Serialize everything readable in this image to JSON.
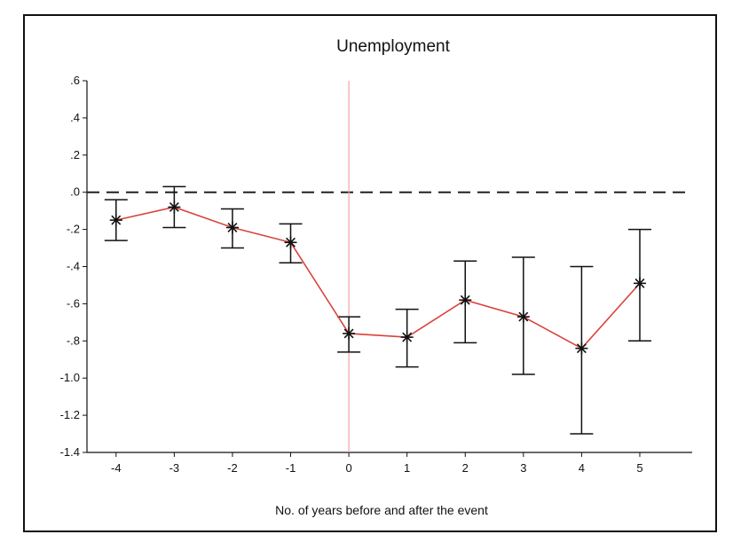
{
  "chart_data": {
    "type": "line",
    "title": "Unemployment",
    "xlabel": "No. of years before and after the event",
    "ylabel": "",
    "x": [
      -4,
      -3,
      -2,
      -1,
      0,
      1,
      2,
      3,
      4,
      5
    ],
    "xlim": [
      -4.5,
      5.9
    ],
    "ylim": [
      -1.4,
      0.6
    ],
    "x_ticks": [
      "-4",
      "-3",
      "-2",
      "-1",
      "0",
      "1",
      "2",
      "3",
      "4",
      "5"
    ],
    "y_ticks": [
      ".6",
      ".4",
      ".2",
      ".0",
      "-.2",
      "-.4",
      "-.6",
      "-.8",
      "-1.0",
      "-1.2",
      "-1.4"
    ],
    "y_tick_values": [
      0.6,
      0.4,
      0.2,
      0.0,
      -0.2,
      -0.4,
      -0.6,
      -0.8,
      -1.0,
      -1.2,
      -1.4
    ],
    "series": [
      {
        "values": [
          -0.15,
          -0.08,
          -0.19,
          -0.27,
          -0.76,
          -0.78,
          -0.58,
          -0.67,
          -0.84,
          -0.49
        ],
        "lower": [
          -0.26,
          -0.19,
          -0.3,
          -0.38,
          -0.86,
          -0.94,
          -0.81,
          -0.98,
          -1.3,
          -0.8
        ],
        "upper": [
          -0.04,
          0.03,
          -0.09,
          -0.17,
          -0.67,
          -0.63,
          -0.37,
          -0.35,
          -0.4,
          -0.2
        ],
        "color": "#d9423a",
        "marker": "asterisk"
      }
    ],
    "reference_lines": [
      {
        "type": "horizontal",
        "value": 0.0,
        "style": "dashed",
        "color": "#222222"
      },
      {
        "type": "vertical",
        "value": 0,
        "style": "solid",
        "color": "#f4a3a3"
      }
    ],
    "grid": false,
    "legend": "none"
  }
}
